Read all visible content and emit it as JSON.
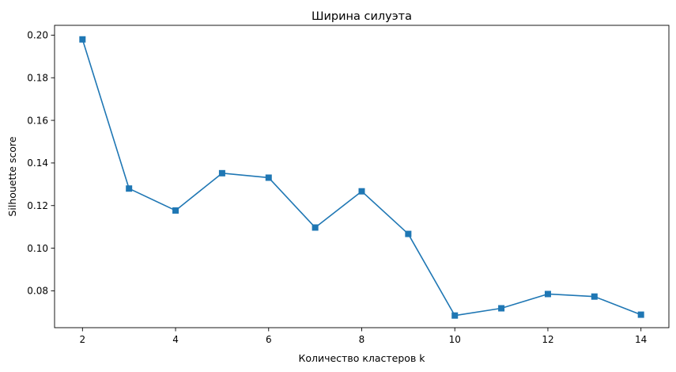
{
  "chart_data": {
    "type": "line",
    "title": "Ширина силуэта",
    "xlabel": "Количество кластеров k",
    "ylabel": "Silhouette score",
    "x": [
      2,
      3,
      4,
      5,
      6,
      7,
      8,
      9,
      10,
      11,
      12,
      13,
      14
    ],
    "series": [
      {
        "values": [
          0.198,
          0.128,
          0.1177,
          0.1352,
          0.1331,
          0.1097,
          0.1267,
          0.1067,
          0.0684,
          0.0718,
          0.0785,
          0.0773,
          0.0688
        ],
        "color": "#1f77b4",
        "marker": "square"
      }
    ],
    "xlim": [
      1.4,
      14.6
    ],
    "ylim": [
      0.0627,
      0.2046
    ],
    "xticks": [
      2,
      4,
      6,
      8,
      10,
      12,
      14
    ],
    "xtick_labels": [
      "2",
      "4",
      "6",
      "8",
      "10",
      "12",
      "14"
    ],
    "yticks": [
      0.08,
      0.1,
      0.12,
      0.14,
      0.16,
      0.18,
      0.2
    ],
    "ytick_labels": [
      "0.08",
      "0.10",
      "0.12",
      "0.14",
      "0.16",
      "0.18",
      "0.20"
    ],
    "grid": false,
    "legend": false
  }
}
